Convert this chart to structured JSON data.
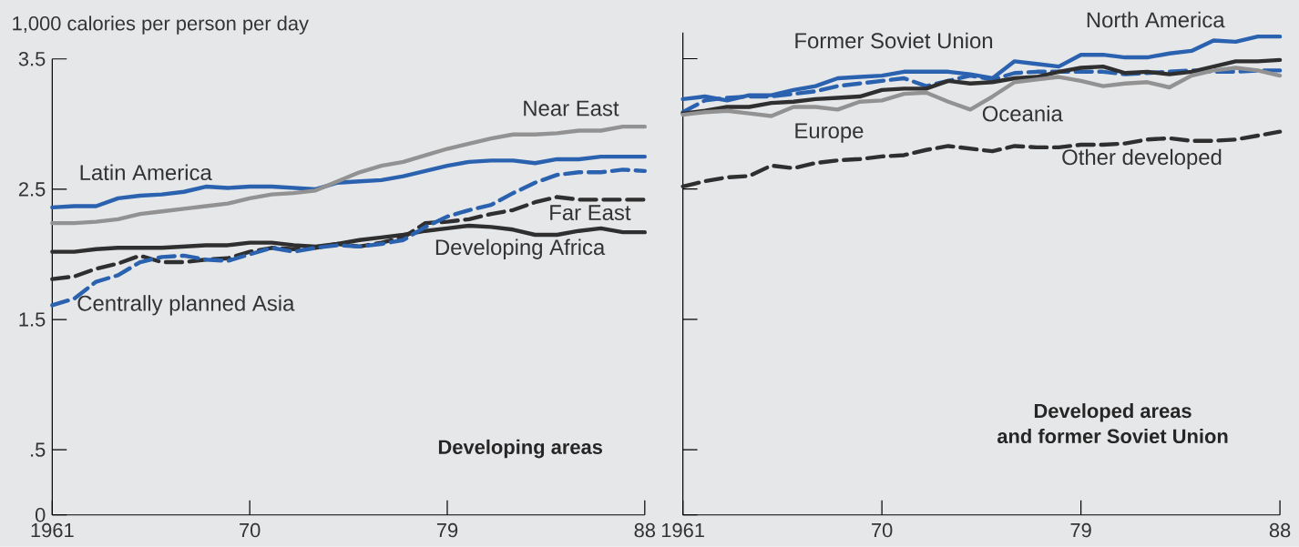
{
  "chart_data": [
    {
      "type": "line",
      "title": "Developing areas",
      "ylabel": "1,000 calories per person per day",
      "x": [
        1961,
        1962,
        1963,
        1964,
        1965,
        1966,
        1967,
        1968,
        1969,
        1970,
        1971,
        1972,
        1973,
        1974,
        1975,
        1976,
        1977,
        1978,
        1979,
        1980,
        1981,
        1982,
        1983,
        1984,
        1985,
        1986,
        1987,
        1988
      ],
      "series": [
        {
          "name": "Latin America",
          "color": "#2a62b0",
          "values": [
            2.36,
            2.37,
            2.37,
            2.43,
            2.45,
            2.46,
            2.48,
            2.52,
            2.51,
            2.52,
            2.52,
            2.51,
            2.5,
            2.55,
            2.56,
            2.57,
            2.6,
            2.64,
            2.68,
            2.71,
            2.72,
            2.72,
            2.7,
            2.73,
            2.73,
            2.75,
            2.75,
            2.75
          ]
        },
        {
          "name": "Near East",
          "color": "#929292",
          "values": [
            2.24,
            2.24,
            2.25,
            2.27,
            2.31,
            2.33,
            2.35,
            2.37,
            2.39,
            2.43,
            2.46,
            2.47,
            2.49,
            2.56,
            2.63,
            2.68,
            2.71,
            2.76,
            2.81,
            2.85,
            2.89,
            2.92,
            2.92,
            2.93,
            2.95,
            2.95,
            2.98,
            2.98
          ]
        },
        {
          "name": "Far East",
          "color": "#2f2f2f",
          "line_style": "dashed",
          "values": [
            1.81,
            1.83,
            1.89,
            1.93,
            1.99,
            1.94,
            1.94,
            1.96,
            1.97,
            2.02,
            2.05,
            2.04,
            2.05,
            2.08,
            2.06,
            2.09,
            2.13,
            2.24,
            2.25,
            2.27,
            2.31,
            2.34,
            2.4,
            2.44,
            2.42,
            2.42,
            2.42,
            2.42
          ]
        },
        {
          "name": "Developing Africa",
          "color": "#2f2f2f",
          "values": [
            2.02,
            2.02,
            2.04,
            2.05,
            2.05,
            2.05,
            2.06,
            2.07,
            2.07,
            2.09,
            2.09,
            2.07,
            2.06,
            2.08,
            2.11,
            2.13,
            2.15,
            2.18,
            2.2,
            2.22,
            2.21,
            2.19,
            2.15,
            2.15,
            2.18,
            2.2,
            2.17,
            2.17
          ]
        },
        {
          "name": "Centrally planned Asia",
          "color": "#2a62b0",
          "line_style": "dashed",
          "values": [
            1.61,
            1.66,
            1.79,
            1.84,
            1.94,
            1.98,
            1.99,
            1.96,
            1.95,
            2.0,
            2.05,
            2.02,
            2.05,
            2.07,
            2.06,
            2.08,
            2.11,
            2.21,
            2.29,
            2.34,
            2.38,
            2.47,
            2.55,
            2.61,
            2.63,
            2.63,
            2.65,
            2.64
          ]
        }
      ],
      "xlim": [
        1961,
        1988
      ],
      "ylim": [
        0,
        3.5
      ],
      "xticks": [
        1961,
        {
          "value": 1970,
          "label": "70"
        },
        {
          "value": 1979,
          "label": "79"
        },
        {
          "value": 1988,
          "label": "88"
        }
      ],
      "yticks": [
        0,
        {
          "value": 0.5,
          "label": ".5"
        },
        1.5,
        2.5,
        3.5
      ]
    },
    {
      "type": "line",
      "title": "Developed areas",
      "subtitle": "and former Soviet Union",
      "x": [
        1961,
        1962,
        1963,
        1964,
        1965,
        1966,
        1967,
        1968,
        1969,
        1970,
        1971,
        1972,
        1973,
        1974,
        1975,
        1976,
        1977,
        1978,
        1979,
        1980,
        1981,
        1982,
        1983,
        1984,
        1985,
        1986,
        1987,
        1988
      ],
      "series": [
        {
          "name": "North America",
          "color": "#2a62b0",
          "values": [
            3.19,
            3.21,
            3.18,
            3.22,
            3.22,
            3.26,
            3.29,
            3.35,
            3.36,
            3.37,
            3.4,
            3.4,
            3.4,
            3.38,
            3.35,
            3.48,
            3.46,
            3.44,
            3.53,
            3.53,
            3.51,
            3.51,
            3.54,
            3.56,
            3.64,
            3.63,
            3.67,
            3.67
          ]
        },
        {
          "name": "Former Soviet Union",
          "color": "#2a62b0",
          "line_style": "dashed",
          "values": [
            3.09,
            3.18,
            3.2,
            3.21,
            3.21,
            3.23,
            3.25,
            3.29,
            3.31,
            3.33,
            3.35,
            3.29,
            3.33,
            3.37,
            3.34,
            3.39,
            3.4,
            3.4,
            3.4,
            3.4,
            3.38,
            3.39,
            3.4,
            3.41,
            3.4,
            3.4,
            3.41,
            3.41
          ]
        },
        {
          "name": "Europe",
          "color": "#2f2f2f",
          "values": [
            3.08,
            3.1,
            3.13,
            3.13,
            3.16,
            3.17,
            3.19,
            3.2,
            3.21,
            3.26,
            3.27,
            3.27,
            3.33,
            3.31,
            3.32,
            3.35,
            3.36,
            3.4,
            3.43,
            3.44,
            3.39,
            3.4,
            3.38,
            3.4,
            3.44,
            3.48,
            3.48,
            3.49
          ]
        },
        {
          "name": "Oceania",
          "color": "#929292",
          "values": [
            3.07,
            3.09,
            3.1,
            3.08,
            3.06,
            3.13,
            3.13,
            3.11,
            3.17,
            3.18,
            3.23,
            3.24,
            3.17,
            3.11,
            3.21,
            3.32,
            3.34,
            3.36,
            3.33,
            3.29,
            3.31,
            3.32,
            3.28,
            3.37,
            3.41,
            3.43,
            3.41,
            3.37
          ]
        },
        {
          "name": "Other developed",
          "color": "#2f2f2f",
          "line_style": "dashed",
          "values": [
            2.52,
            2.56,
            2.59,
            2.6,
            2.68,
            2.66,
            2.7,
            2.72,
            2.73,
            2.75,
            2.76,
            2.8,
            2.83,
            2.81,
            2.79,
            2.83,
            2.82,
            2.82,
            2.84,
            2.84,
            2.85,
            2.88,
            2.89,
            2.87,
            2.87,
            2.88,
            2.91,
            2.94
          ]
        }
      ],
      "xlim": [
        1961,
        1988
      ],
      "ylim": [
        0,
        3.7
      ],
      "xticks": [
        1961,
        {
          "value": 1970,
          "label": "70"
        },
        {
          "value": 1979,
          "label": "79"
        },
        {
          "value": 1988,
          "label": "88"
        }
      ],
      "yticks": [
        0,
        0.5,
        1.5,
        2.5,
        3.5
      ],
      "tick_labels": "x"
    }
  ]
}
